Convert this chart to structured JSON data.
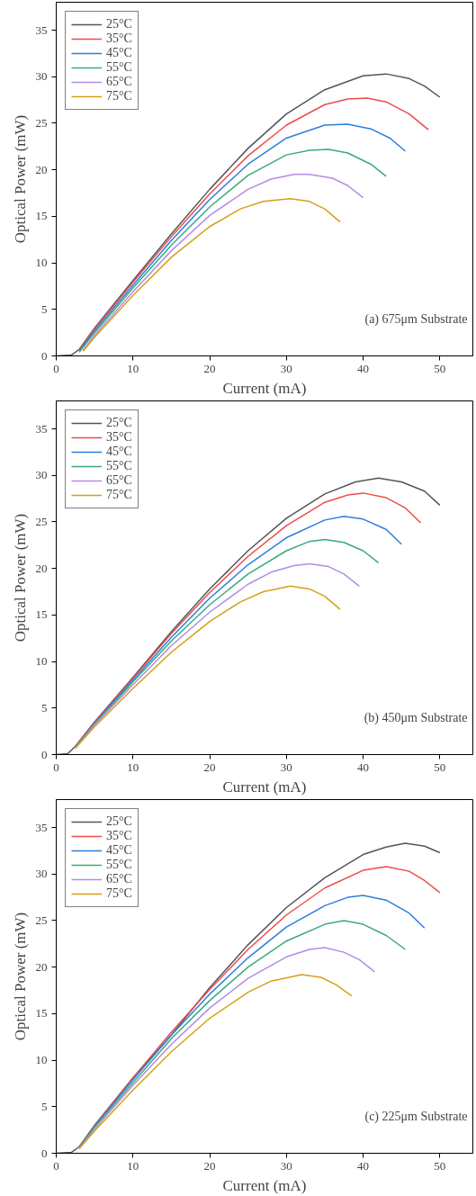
{
  "chart_data": [
    {
      "type": "line",
      "xlabel": "Current (mA)",
      "ylabel": "Optical Power (mW)",
      "xlim": [
        0,
        54.3
      ],
      "ylim": [
        0,
        38
      ],
      "xticks": [
        0,
        10,
        20,
        30,
        40,
        50
      ],
      "yticks": [
        0,
        5,
        10,
        15,
        20,
        25,
        30,
        35
      ],
      "grid": false,
      "legend": "top left",
      "annotations": [
        "(a) 675μm Substrate"
      ],
      "series": [
        {
          "name": "25°C",
          "color": "#555555",
          "x": [
            0,
            2,
            3,
            5,
            10,
            15,
            20,
            25,
            30,
            35,
            40,
            43,
            46,
            48,
            50
          ],
          "values": [
            0,
            0.1,
            0.7,
            3.0,
            8.1,
            13.1,
            17.9,
            22.3,
            26.0,
            28.6,
            30.1,
            30.3,
            29.8,
            29.0,
            27.8
          ]
        },
        {
          "name": "35°C",
          "color": "#ef4a4a",
          "x": [
            3,
            5,
            10,
            15,
            20,
            25,
            30,
            35,
            38,
            40.5,
            43,
            46,
            48.5
          ],
          "values": [
            0.6,
            2.9,
            7.9,
            12.8,
            17.4,
            21.5,
            24.8,
            27.0,
            27.6,
            27.7,
            27.3,
            26.0,
            24.3
          ]
        },
        {
          "name": "45°C",
          "color": "#2b7fdc",
          "x": [
            3,
            5,
            10,
            15,
            20,
            25,
            30,
            35,
            38,
            41,
            43.5,
            45.5
          ],
          "values": [
            0.5,
            2.7,
            7.6,
            12.4,
            16.8,
            20.6,
            23.4,
            24.8,
            24.9,
            24.4,
            23.4,
            22.0
          ]
        },
        {
          "name": "55°C",
          "color": "#3aaa7a",
          "x": [
            3,
            5,
            10,
            15,
            20,
            25,
            30,
            33,
            35.5,
            38,
            41,
            43
          ],
          "values": [
            0.4,
            2.5,
            7.3,
            11.9,
            16.0,
            19.4,
            21.6,
            22.1,
            22.2,
            21.8,
            20.6,
            19.3
          ]
        },
        {
          "name": "65°C",
          "color": "#b38be6",
          "x": [
            3.5,
            5,
            10,
            15,
            20,
            25,
            28,
            31,
            33,
            36,
            38,
            40
          ],
          "values": [
            0.6,
            2.2,
            6.9,
            11.3,
            15.1,
            17.9,
            19.0,
            19.5,
            19.5,
            19.1,
            18.3,
            17.0
          ]
        },
        {
          "name": "75°C",
          "color": "#d4a017",
          "x": [
            3.5,
            5,
            10,
            15,
            20,
            24,
            27,
            30.5,
            33,
            35,
            37
          ],
          "values": [
            0.5,
            2.0,
            6.5,
            10.6,
            13.9,
            15.8,
            16.6,
            16.9,
            16.6,
            15.8,
            14.4
          ]
        }
      ]
    },
    {
      "type": "line",
      "xlabel": "Current (mA)",
      "ylabel": "Optical Power (mW)",
      "xlim": [
        0,
        54.3
      ],
      "ylim": [
        0,
        38
      ],
      "xticks": [
        0,
        10,
        20,
        30,
        40,
        50
      ],
      "yticks": [
        0,
        5,
        10,
        15,
        20,
        25,
        30,
        35
      ],
      "grid": false,
      "legend": "top left",
      "annotations": [
        "(b) 450μm Substrate"
      ],
      "series": [
        {
          "name": "25°C",
          "color": "#555555",
          "x": [
            0,
            1.5,
            2.5,
            5,
            10,
            15,
            20,
            25,
            30,
            35,
            39,
            42,
            45,
            48,
            50
          ],
          "values": [
            0,
            0.1,
            0.9,
            3.5,
            8.3,
            13.2,
            17.8,
            21.9,
            25.4,
            28.0,
            29.3,
            29.7,
            29.3,
            28.3,
            26.8
          ]
        },
        {
          "name": "35°C",
          "color": "#ef4a4a",
          "x": [
            2.5,
            5,
            10,
            15,
            20,
            25,
            30,
            35,
            38,
            40,
            43,
            45.5,
            47.5
          ],
          "values": [
            0.9,
            3.5,
            8.2,
            13.0,
            17.4,
            21.3,
            24.6,
            27.1,
            27.9,
            28.1,
            27.6,
            26.5,
            24.9
          ]
        },
        {
          "name": "45°C",
          "color": "#2b7fdc",
          "x": [
            2.5,
            5,
            10,
            15,
            20,
            25,
            30,
            35,
            37.5,
            40,
            43,
            45
          ],
          "values": [
            0.8,
            3.4,
            8.0,
            12.6,
            16.8,
            20.4,
            23.3,
            25.2,
            25.6,
            25.3,
            24.2,
            22.6
          ]
        },
        {
          "name": "55°C",
          "color": "#3aaa7a",
          "x": [
            2.5,
            5,
            10,
            15,
            20,
            25,
            30,
            33,
            35,
            37.5,
            40,
            42
          ],
          "values": [
            0.8,
            3.3,
            7.8,
            12.2,
            16.1,
            19.4,
            21.9,
            22.9,
            23.1,
            22.8,
            21.9,
            20.6
          ]
        },
        {
          "name": "65°C",
          "color": "#b38be6",
          "x": [
            2.5,
            5,
            10,
            15,
            20,
            25,
            28,
            31,
            33,
            35.5,
            37.5,
            39.5
          ],
          "values": [
            0.7,
            3.2,
            7.5,
            11.7,
            15.3,
            18.3,
            19.6,
            20.3,
            20.5,
            20.2,
            19.4,
            18.1
          ]
        },
        {
          "name": "75°C",
          "color": "#d4a017",
          "x": [
            2.5,
            5,
            10,
            15,
            20,
            24,
            27,
            30.5,
            33,
            35,
            37
          ],
          "values": [
            0.7,
            3.0,
            7.1,
            11.0,
            14.3,
            16.4,
            17.5,
            18.1,
            17.8,
            17.0,
            15.6
          ]
        }
      ]
    },
    {
      "type": "line",
      "xlabel": "Current (mA)",
      "ylabel": "Optical Power (mW)",
      "xlim": [
        0,
        54.3
      ],
      "ylim": [
        0,
        38
      ],
      "xticks": [
        0,
        10,
        20,
        30,
        40,
        50
      ],
      "yticks": [
        0,
        5,
        10,
        15,
        20,
        25,
        30,
        35
      ],
      "grid": false,
      "legend": "top left",
      "annotations": [
        "(c) 225μm Substrate"
      ],
      "series": [
        {
          "name": "25°C",
          "color": "#555555",
          "x": [
            0,
            2,
            3,
            5,
            10,
            15,
            20,
            25,
            30,
            35,
            40,
            43,
            45.5,
            48,
            50
          ],
          "values": [
            0,
            0.1,
            0.7,
            3.0,
            8.1,
            12.7,
            17.8,
            22.4,
            26.4,
            29.6,
            32.1,
            32.9,
            33.3,
            33.0,
            32.3
          ]
        },
        {
          "name": "35°C",
          "color": "#ef4a4a",
          "x": [
            3,
            5,
            10,
            15,
            20,
            25,
            30,
            35,
            40,
            43,
            46,
            48,
            50
          ],
          "values": [
            0.7,
            3.0,
            8.1,
            13.0,
            17.6,
            21.9,
            25.6,
            28.5,
            30.4,
            30.8,
            30.3,
            29.3,
            28.0
          ]
        },
        {
          "name": "45°C",
          "color": "#2b7fdc",
          "x": [
            3,
            5,
            10,
            15,
            20,
            25,
            30,
            35,
            38,
            40,
            43,
            46,
            48
          ],
          "values": [
            0.6,
            2.9,
            7.9,
            12.7,
            17.1,
            21.0,
            24.3,
            26.6,
            27.5,
            27.7,
            27.2,
            25.8,
            24.2
          ]
        },
        {
          "name": "55°C",
          "color": "#3aaa7a",
          "x": [
            3,
            5,
            10,
            15,
            20,
            25,
            30,
            35,
            37.5,
            40,
            43,
            45.5
          ],
          "values": [
            0.6,
            2.8,
            7.6,
            12.3,
            16.4,
            20.0,
            22.8,
            24.6,
            25.0,
            24.6,
            23.4,
            21.9
          ]
        },
        {
          "name": "65°C",
          "color": "#b38be6",
          "x": [
            3,
            5,
            10,
            15,
            20,
            25,
            30,
            33,
            35,
            37.5,
            39.5,
            41.5
          ],
          "values": [
            0.5,
            2.6,
            7.3,
            11.7,
            15.6,
            18.8,
            21.1,
            21.9,
            22.1,
            21.6,
            20.8,
            19.5
          ]
        },
        {
          "name": "75°C",
          "color": "#d4a017",
          "x": [
            3,
            5,
            10,
            15,
            20,
            25,
            28,
            32,
            34.5,
            36.5,
            38.5
          ],
          "values": [
            0.5,
            2.4,
            6.8,
            10.9,
            14.5,
            17.3,
            18.5,
            19.2,
            18.9,
            18.1,
            16.9
          ]
        }
      ]
    }
  ]
}
